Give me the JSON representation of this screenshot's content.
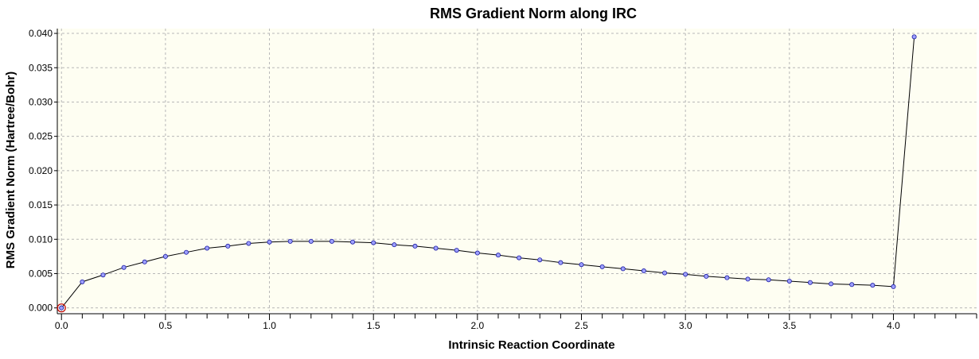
{
  "chart_data": {
    "type": "line",
    "title": "RMS Gradient Norm along IRC",
    "xlabel": "Intrinsic Reaction Coordinate",
    "ylabel": "RMS Gradient Norm (Hartree/Bohr)",
    "xlim": [
      -0.02,
      4.4
    ],
    "ylim": [
      -0.0005,
      0.0407
    ],
    "x_ticks": [
      0.0,
      0.5,
      1.0,
      1.5,
      2.0,
      2.5,
      3.0,
      3.5,
      4.0
    ],
    "x_tick_labels": [
      "0.0",
      "0.5",
      "1.0",
      "1.5",
      "2.0",
      "2.5",
      "3.0",
      "3.5",
      "4.0"
    ],
    "y_ticks": [
      0.0,
      0.005,
      0.01,
      0.015,
      0.02,
      0.025,
      0.03,
      0.035,
      0.04
    ],
    "y_tick_labels": [
      "0.000",
      "0.005",
      "0.010",
      "0.015",
      "0.020",
      "0.025",
      "0.030",
      "0.035",
      "0.040"
    ],
    "grid": true,
    "background": "#fefef2",
    "marker_fill": "#9ea0ff",
    "marker_edge": "#1a1aa0",
    "highlight_color": "#c00000",
    "series": [
      {
        "x": [
          0.0,
          0.1,
          0.2,
          0.3,
          0.4,
          0.5,
          0.6,
          0.7,
          0.8,
          0.9,
          1.0,
          1.1,
          1.2,
          1.3,
          1.4,
          1.5,
          1.6,
          1.7,
          1.8,
          1.9,
          2.0,
          2.1,
          2.2,
          2.3,
          2.4,
          2.5,
          2.6,
          2.7,
          2.8,
          2.9,
          3.0,
          3.1,
          3.2,
          3.3,
          3.4,
          3.5,
          3.6,
          3.7,
          3.8,
          3.9,
          4.0,
          4.1
        ],
        "y": [
          0.0,
          0.0038,
          0.0048,
          0.0059,
          0.0067,
          0.0075,
          0.0081,
          0.0087,
          0.009,
          0.0094,
          0.0096,
          0.0097,
          0.0097,
          0.0097,
          0.0096,
          0.0095,
          0.0092,
          0.009,
          0.0087,
          0.0084,
          0.008,
          0.0077,
          0.0073,
          0.007,
          0.0066,
          0.0063,
          0.006,
          0.0057,
          0.0054,
          0.0051,
          0.0049,
          0.0046,
          0.0044,
          0.0042,
          0.0041,
          0.0039,
          0.0037,
          0.0035,
          0.0034,
          0.0033,
          0.0031,
          0.0395
        ]
      }
    ],
    "highlight_index": 0
  }
}
